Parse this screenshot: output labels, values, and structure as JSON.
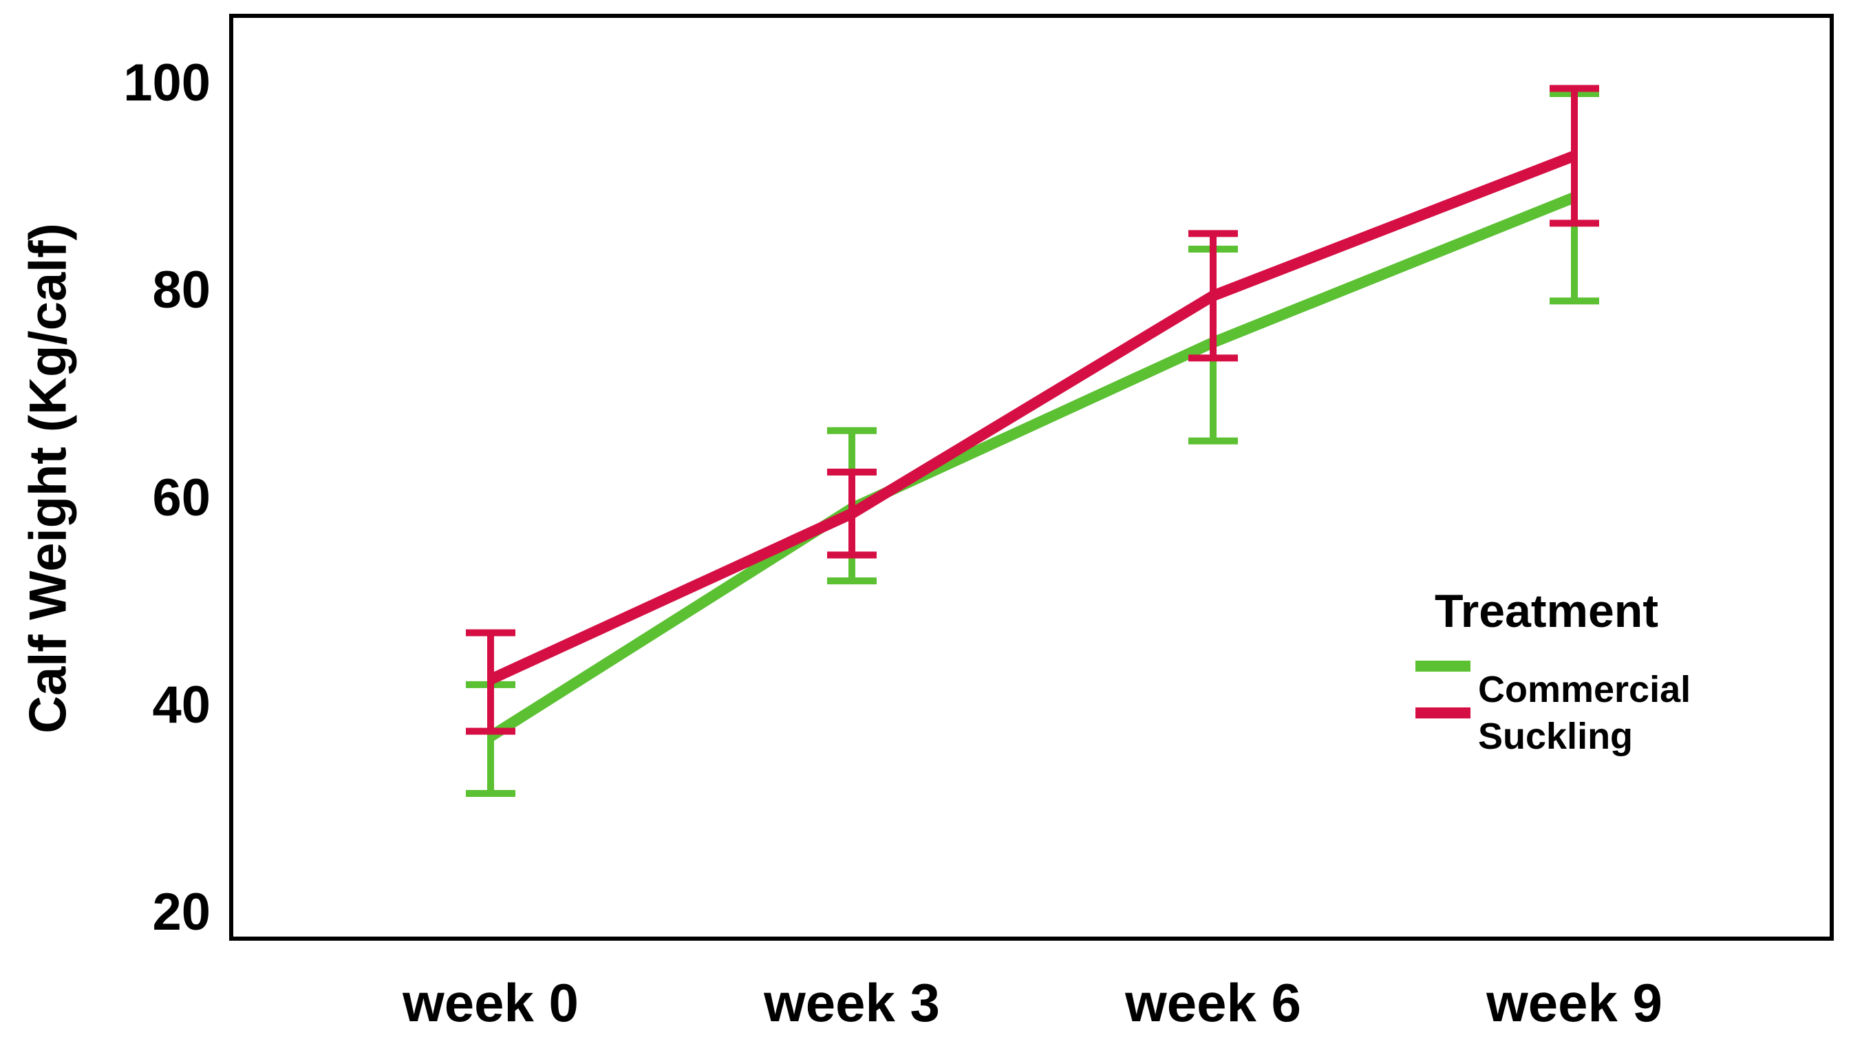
{
  "chart_data": {
    "type": "line",
    "title": "",
    "xlabel": "",
    "ylabel": "Calf Weight (Kg/calf)",
    "categories": [
      "week 0",
      "week 3",
      "week 6",
      "week 9"
    ],
    "yticks": [
      100,
      80,
      60,
      40,
      20
    ],
    "ylim": [
      17.5,
      106.5
    ],
    "grid": false,
    "framed_plot_area": true,
    "error_bars": true,
    "legend": {
      "title": "Treatment",
      "position": "right-center"
    },
    "series": [
      {
        "name": "Commercial",
        "color": "#5BC032",
        "values": [
          37,
          59,
          75,
          89
        ],
        "err_low": [
          31.5,
          52,
          65.5,
          79
        ],
        "err_high": [
          42,
          66.5,
          84,
          99
        ]
      },
      {
        "name": "Suckling",
        "color": "#D50F44",
        "values": [
          42.5,
          58.5,
          79.5,
          93
        ],
        "err_low": [
          37.5,
          54.5,
          73.5,
          86.5
        ],
        "err_high": [
          47,
          62.5,
          85.5,
          99.5
        ]
      }
    ]
  },
  "colors": {
    "axis_frame": "#000000",
    "text": "#000000",
    "background": "#FFFFFF"
  }
}
